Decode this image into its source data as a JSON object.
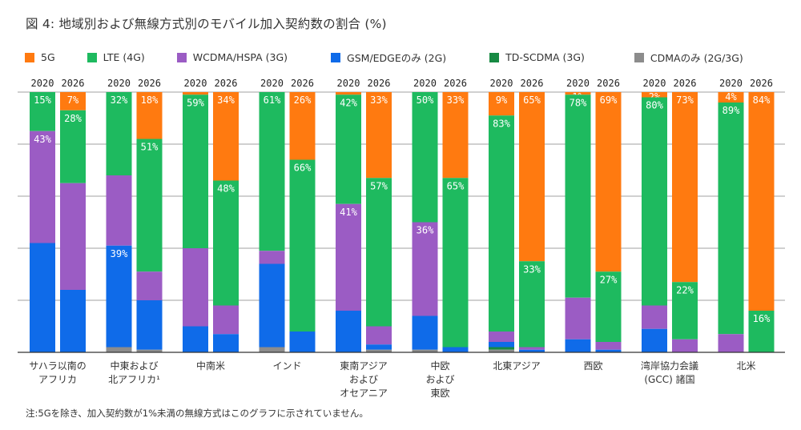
{
  "title": "図 4: 地域別および無線方式別のモバイル加入契約数の割合 (%)",
  "footnote": "注:5Gを除き、加入契約数が1%未満の無線方式はこのグラフに示されていません。",
  "legend": [
    {
      "label": "5G",
      "color": "#ff7a10"
    },
    {
      "label": "LTE (4G)",
      "color": "#1eba5f"
    },
    {
      "label": "WCDMA/HSPA (3G)",
      "color": "#9b5cc4"
    },
    {
      "label": "GSM/EDGEのみ (2G)",
      "color": "#0f6be9"
    },
    {
      "label": "TD-SCDMA (3G)",
      "color": "#178a43"
    },
    {
      "label": "CDMAのみ (2G/3G)",
      "color": "#8c8c8c"
    }
  ],
  "chart_data": {
    "type": "bar",
    "stacked": true,
    "percent": true,
    "title": "図 4: 地域別および無線方式別のモバイル加入契約数の割合 (%)",
    "xlabel": "",
    "ylabel": "",
    "ylim": [
      0,
      100
    ],
    "grid": true,
    "legend_position": "top-left",
    "series_order_top_to_bottom": [
      "5G",
      "LTE (4G)",
      "WCDMA/HSPA (3G)",
      "GSM/EDGEのみ (2G)",
      "TD-SCDMA (3G)",
      "CDMAのみ (2G/3G)"
    ],
    "categories": [
      {
        "label": "サハラ以南の\nアフリカ",
        "bars": [
          {
            "year": "2020",
            "values": {
              "5G": 0,
              "LTE (4G)": 15,
              "WCDMA/HSPA (3G)": 43,
              "GSM/EDGEのみ (2G)": 42,
              "TD-SCDMA (3G)": 0,
              "CDMAのみ (2G/3G)": 0
            },
            "labels": [
              "LTE (4G)",
              "WCDMA/HSPA (3G)"
            ]
          },
          {
            "year": "2026",
            "values": {
              "5G": 7,
              "LTE (4G)": 28,
              "WCDMA/HSPA (3G)": 41,
              "GSM/EDGEのみ (2G)": 24,
              "TD-SCDMA (3G)": 0,
              "CDMAのみ (2G/3G)": 0
            },
            "labels": [
              "5G",
              "LTE (4G)"
            ]
          }
        ]
      },
      {
        "label": "中東および\n北アフリカ¹",
        "bars": [
          {
            "year": "2020",
            "values": {
              "5G": 0,
              "LTE (4G)": 32,
              "WCDMA/HSPA (3G)": 27,
              "GSM/EDGEのみ (2G)": 39,
              "TD-SCDMA (3G)": 0,
              "CDMAのみ (2G/3G)": 2
            },
            "labels": [
              "LTE (4G)",
              "GSM/EDGEのみ (2G)"
            ]
          },
          {
            "year": "2026",
            "values": {
              "5G": 18,
              "LTE (4G)": 51,
              "WCDMA/HSPA (3G)": 11,
              "GSM/EDGEのみ (2G)": 19,
              "TD-SCDMA (3G)": 0,
              "CDMAのみ (2G/3G)": 1
            },
            "labels": [
              "5G",
              "LTE (4G)"
            ]
          }
        ]
      },
      {
        "label": "中南米",
        "bars": [
          {
            "year": "2020",
            "values": {
              "5G": 1,
              "LTE (4G)": 59,
              "WCDMA/HSPA (3G)": 30,
              "GSM/EDGEのみ (2G)": 10,
              "TD-SCDMA (3G)": 0,
              "CDMAのみ (2G/3G)": 0
            },
            "labels": [
              "LTE (4G)"
            ]
          },
          {
            "year": "2026",
            "values": {
              "5G": 34,
              "LTE (4G)": 48,
              "WCDMA/HSPA (3G)": 11,
              "GSM/EDGEのみ (2G)": 7,
              "TD-SCDMA (3G)": 0,
              "CDMAのみ (2G/3G)": 0
            },
            "labels": [
              "5G",
              "LTE (4G)"
            ]
          }
        ]
      },
      {
        "label": "インド",
        "bars": [
          {
            "year": "2020",
            "values": {
              "5G": 0,
              "LTE (4G)": 61,
              "WCDMA/HSPA (3G)": 5,
              "GSM/EDGEのみ (2G)": 32,
              "TD-SCDMA (3G)": 0,
              "CDMAのみ (2G/3G)": 2
            },
            "labels": [
              "LTE (4G)"
            ]
          },
          {
            "year": "2026",
            "values": {
              "5G": 26,
              "LTE (4G)": 66,
              "WCDMA/HSPA (3G)": 0,
              "GSM/EDGEのみ (2G)": 8,
              "TD-SCDMA (3G)": 0,
              "CDMAのみ (2G/3G)": 0
            },
            "labels": [
              "5G",
              "LTE (4G)"
            ]
          }
        ]
      },
      {
        "label": "東南アジア\nおよび\nオセアニア",
        "bars": [
          {
            "year": "2020",
            "values": {
              "5G": 1,
              "LTE (4G)": 42,
              "WCDMA/HSPA (3G)": 41,
              "GSM/EDGEのみ (2G)": 16,
              "TD-SCDMA (3G)": 0,
              "CDMAのみ (2G/3G)": 0
            },
            "labels": [
              "LTE (4G)",
              "WCDMA/HSPA (3G)"
            ]
          },
          {
            "year": "2026",
            "values": {
              "5G": 33,
              "LTE (4G)": 57,
              "WCDMA/HSPA (3G)": 7,
              "GSM/EDGEのみ (2G)": 2,
              "TD-SCDMA (3G)": 0,
              "CDMAのみ (2G/3G)": 1
            },
            "labels": [
              "5G",
              "LTE (4G)"
            ]
          }
        ]
      },
      {
        "label": "中欧\nおよび\n東欧",
        "bars": [
          {
            "year": "2020",
            "values": {
              "5G": 0,
              "LTE (4G)": 50,
              "WCDMA/HSPA (3G)": 36,
              "GSM/EDGEのみ (2G)": 13,
              "TD-SCDMA (3G)": 0,
              "CDMAのみ (2G/3G)": 1
            },
            "labels": [
              "LTE (4G)",
              "WCDMA/HSPA (3G)"
            ]
          },
          {
            "year": "2026",
            "values": {
              "5G": 33,
              "LTE (4G)": 65,
              "WCDMA/HSPA (3G)": 0,
              "GSM/EDGEのみ (2G)": 2,
              "TD-SCDMA (3G)": 0,
              "CDMAのみ (2G/3G)": 0
            },
            "labels": [
              "5G",
              "LTE (4G)"
            ]
          }
        ]
      },
      {
        "label": "北東アジア",
        "bars": [
          {
            "year": "2020",
            "values": {
              "5G": 9,
              "LTE (4G)": 83,
              "WCDMA/HSPA (3G)": 4,
              "GSM/EDGEのみ (2G)": 2,
              "TD-SCDMA (3G)": 1,
              "CDMAのみ (2G/3G)": 1
            },
            "labels": [
              "5G",
              "LTE (4G)"
            ]
          },
          {
            "year": "2026",
            "values": {
              "5G": 65,
              "LTE (4G)": 33,
              "WCDMA/HSPA (3G)": 1,
              "GSM/EDGEのみ (2G)": 1,
              "TD-SCDMA (3G)": 0,
              "CDMAのみ (2G/3G)": 0
            },
            "labels": [
              "5G",
              "LTE (4G)"
            ]
          }
        ]
      },
      {
        "label": "西欧",
        "bars": [
          {
            "year": "2020",
            "values": {
              "5G": 1,
              "LTE (4G)": 78,
              "WCDMA/HSPA (3G)": 16,
              "GSM/EDGEのみ (2G)": 5,
              "TD-SCDMA (3G)": 0,
              "CDMAのみ (2G/3G)": 0
            },
            "labels": [
              "5G",
              "LTE (4G)"
            ]
          },
          {
            "year": "2026",
            "values": {
              "5G": 69,
              "LTE (4G)": 27,
              "WCDMA/HSPA (3G)": 3,
              "GSM/EDGEのみ (2G)": 1,
              "TD-SCDMA (3G)": 0,
              "CDMAのみ (2G/3G)": 0
            },
            "labels": [
              "5G",
              "LTE (4G)"
            ]
          }
        ]
      },
      {
        "label": "湾岸協力会議\n(GCC) 諸国",
        "bars": [
          {
            "year": "2020",
            "values": {
              "5G": 2,
              "LTE (4G)": 80,
              "WCDMA/HSPA (3G)": 9,
              "GSM/EDGEのみ (2G)": 9,
              "TD-SCDMA (3G)": 0,
              "CDMAのみ (2G/3G)": 0
            },
            "labels": [
              "5G",
              "LTE (4G)"
            ]
          },
          {
            "year": "2026",
            "values": {
              "5G": 73,
              "LTE (4G)": 22,
              "WCDMA/HSPA (3G)": 5,
              "GSM/EDGEのみ (2G)": 0,
              "TD-SCDMA (3G)": 0,
              "CDMAのみ (2G/3G)": 0
            },
            "labels": [
              "5G",
              "LTE (4G)"
            ]
          }
        ]
      },
      {
        "label": "北米",
        "bars": [
          {
            "year": "2020",
            "values": {
              "5G": 4,
              "LTE (4G)": 89,
              "WCDMA/HSPA (3G)": 7,
              "GSM/EDGEのみ (2G)": 0,
              "TD-SCDMA (3G)": 0,
              "CDMAのみ (2G/3G)": 0
            },
            "labels": [
              "5G",
              "LTE (4G)"
            ]
          },
          {
            "year": "2026",
            "values": {
              "5G": 84,
              "LTE (4G)": 16,
              "WCDMA/HSPA (3G)": 0,
              "GSM/EDGEのみ (2G)": 0,
              "TD-SCDMA (3G)": 0,
              "CDMAのみ (2G/3G)": 0
            },
            "labels": [
              "5G",
              "LTE (4G)"
            ]
          }
        ]
      }
    ]
  }
}
